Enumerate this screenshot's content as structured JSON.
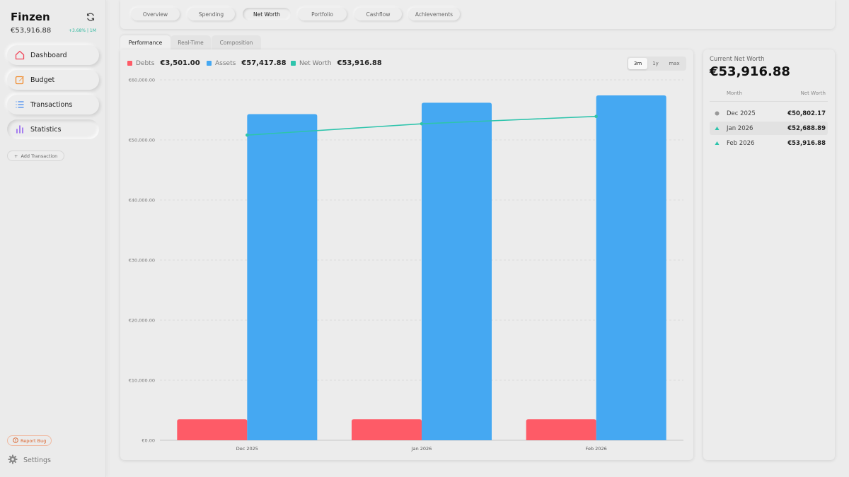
{
  "app": {
    "name": "Finzen",
    "total": "€53,916.88",
    "change": "+3.68% | 1M"
  },
  "sidebar": {
    "items": [
      {
        "label": "Dashboard"
      },
      {
        "label": "Budget"
      },
      {
        "label": "Transactions"
      },
      {
        "label": "Statistics"
      }
    ],
    "add_transaction": "Add Transaction",
    "report_bug": "Report Bug",
    "settings": "Settings"
  },
  "top_tabs": [
    {
      "label": "Overview"
    },
    {
      "label": "Spending"
    },
    {
      "label": "Net Worth"
    },
    {
      "label": "Portfolio"
    },
    {
      "label": "Cashflow"
    },
    {
      "label": "Achievements"
    }
  ],
  "sub_tabs": [
    {
      "label": "Performance"
    },
    {
      "label": "Real-Time"
    },
    {
      "label": "Composition"
    }
  ],
  "legend": {
    "debts": {
      "label": "Debts",
      "value": "€3,501.00"
    },
    "assets": {
      "label": "Assets",
      "value": "€57,417.88"
    },
    "net_worth": {
      "label": "Net Worth",
      "value": "€53,916.88"
    }
  },
  "range": {
    "options": [
      "3m",
      "1y",
      "max"
    ],
    "selected": "3m"
  },
  "colors": {
    "debts": "#fe5b67",
    "assets": "#45a8f2",
    "net_worth": "#2ec4ac",
    "accent": "#2fb89e"
  },
  "chart_data": {
    "type": "bar",
    "categories": [
      "Dec 2025",
      "Jan 2026",
      "Feb 2026"
    ],
    "series": [
      {
        "name": "Debts",
        "values": [
          3501,
          3501,
          3501
        ]
      },
      {
        "name": "Assets",
        "values": [
          54300,
          56190,
          57418
        ]
      },
      {
        "name": "Net Worth",
        "type": "line",
        "values": [
          50802.17,
          52688.89,
          53916.88
        ]
      }
    ],
    "y_ticks": [
      "€0.00",
      "€10,000.00",
      "€20,000.00",
      "€30,000.00",
      "€40,000.00",
      "€50,000.00",
      "€60,000.00"
    ],
    "ylim": [
      0,
      60000
    ],
    "grid": true
  },
  "summary": {
    "label": "Current Net Worth",
    "value": "€53,916.88",
    "col_month": "Month",
    "col_net_worth": "Net Worth",
    "rows": [
      {
        "month": "Dec 2025",
        "value": "€50,802.17",
        "marker": "dot"
      },
      {
        "month": "Jan 2026",
        "value": "€52,688.89",
        "marker": "up"
      },
      {
        "month": "Feb 2026",
        "value": "€53,916.88",
        "marker": "up"
      }
    ]
  }
}
